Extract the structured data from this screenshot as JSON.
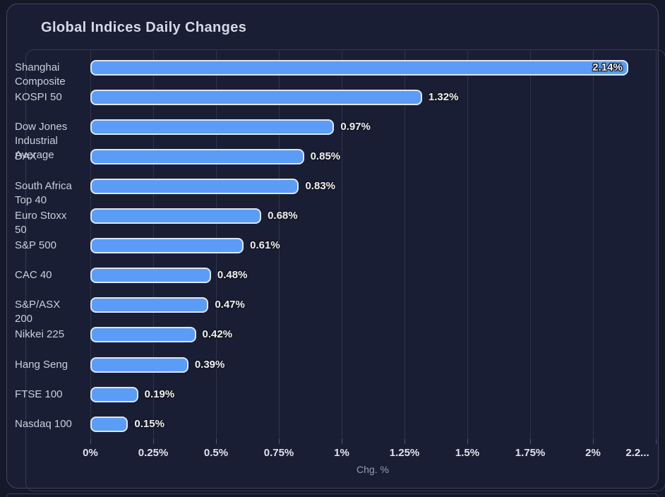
{
  "card": {
    "title": "Global Indices Daily Changes"
  },
  "chart_data": {
    "type": "bar",
    "orientation": "horizontal",
    "title": "Global Indices Daily Changes",
    "xlabel": "Chg. %",
    "ylabel": "",
    "grid": true,
    "legend": false,
    "xlim": [
      0,
      2.25
    ],
    "categories": [
      "Shanghai Composite",
      "KOSPI 50",
      "Dow Jones Industrial Average",
      "DAX",
      "South Africa Top 40",
      "Euro Stoxx 50",
      "S&P 500",
      "CAC 40",
      "S&P/ASX 200",
      "Nikkei 225",
      "Hang Seng",
      "FTSE 100",
      "Nasdaq 100"
    ],
    "category_display_lines": [
      [
        "Shanghai",
        "Composite"
      ],
      [
        "KOSPI 50"
      ],
      [
        "Dow Jones",
        "Industrial",
        "Average"
      ],
      [
        "DAX"
      ],
      [
        "South Africa",
        "Top 40"
      ],
      [
        "Euro Stoxx",
        "50"
      ],
      [
        "S&P 500"
      ],
      [
        "CAC 40"
      ],
      [
        "S&P/ASX",
        "200"
      ],
      [
        "Nikkei 225"
      ],
      [
        "Hang Seng"
      ],
      [
        "FTSE 100"
      ],
      [
        "Nasdaq 100"
      ]
    ],
    "values": [
      2.14,
      1.32,
      0.97,
      0.85,
      0.83,
      0.68,
      0.61,
      0.48,
      0.47,
      0.42,
      0.39,
      0.19,
      0.15
    ],
    "value_labels": [
      "2.14%",
      "1.32%",
      "0.97%",
      "0.85%",
      "0.83%",
      "0.68%",
      "0.61%",
      "0.48%",
      "0.47%",
      "0.42%",
      "0.39%",
      "0.19%",
      "0.15%"
    ],
    "x_tick_values": [
      0,
      0.25,
      0.5,
      0.75,
      1,
      1.25,
      1.5,
      1.75,
      2,
      2.25
    ],
    "x_tick_labels": [
      "0%",
      "0.25%",
      "0.5%",
      "0.75%",
      "1%",
      "1.25%",
      "1.5%",
      "1.75%",
      "2%",
      "2.2..."
    ],
    "colors": {
      "bar_fill": "#5b9cf6",
      "bar_border": "#dce6f4",
      "background": "#1a1e34",
      "page_background": "#151829",
      "gridline": "#2e344c",
      "title_text": "#d6d9e5",
      "axis_text": "#dfe3ec",
      "category_text": "#c9cfdc",
      "value_text": "#eceef2",
      "axis_title_text": "#959cb0"
    }
  }
}
